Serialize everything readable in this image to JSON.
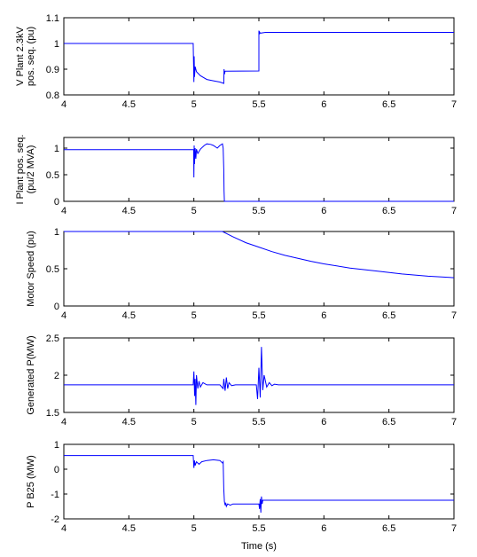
{
  "chart_data": [
    {
      "type": "line",
      "ylabel": [
        "V Plant 2.3kV",
        "pos. seq. (pu)"
      ],
      "xlim": [
        4,
        7
      ],
      "ylim": [
        0.8,
        1.1
      ],
      "xticks": [
        "4",
        "4.5",
        "5",
        "5.5",
        "6",
        "6.5",
        "7"
      ],
      "yticks": [
        "0.8",
        "0.9",
        "1",
        "1.1"
      ],
      "series": [
        {
          "x": [
            4,
            4.995,
            5.0,
            5.002,
            5.005,
            5.01,
            5.02,
            5.05,
            5.1,
            5.15,
            5.2,
            5.23,
            5.232,
            5.235,
            5.24,
            5.5,
            5.5,
            5.502,
            5.505,
            5.51,
            5.55,
            6,
            7
          ],
          "y": [
            1.0,
            1.0,
            0.85,
            0.95,
            0.87,
            0.91,
            0.89,
            0.875,
            0.86,
            0.855,
            0.85,
            0.845,
            0.9,
            0.88,
            0.892,
            0.893,
            1.05,
            1.035,
            1.045,
            1.04,
            1.043,
            1.043,
            1.043
          ]
        }
      ]
    },
    {
      "type": "line",
      "ylabel": [
        "I Plant pos. seq.",
        "(pu/2 MVA)"
      ],
      "xlim": [
        4,
        7
      ],
      "ylim": [
        0,
        1.2
      ],
      "xticks": [
        "4",
        "4.5",
        "5",
        "5.5",
        "6",
        "6.5",
        "7"
      ],
      "yticks": [
        "0",
        "0.5",
        "1"
      ],
      "series": [
        {
          "x": [
            4,
            4.998,
            5.0,
            5.002,
            5.005,
            5.01,
            5.015,
            5.02,
            5.03,
            5.05,
            5.08,
            5.1,
            5.13,
            5.15,
            5.18,
            5.2,
            5.22,
            5.225,
            5.23,
            5.232,
            5.235,
            7
          ],
          "y": [
            0.97,
            0.97,
            0.45,
            1.05,
            0.7,
            1.0,
            0.8,
            0.98,
            0.9,
            0.98,
            1.05,
            1.08,
            1.07,
            1.05,
            1.0,
            1.05,
            1.08,
            1.0,
            0.6,
            0.2,
            0.0,
            0.0
          ]
        }
      ]
    },
    {
      "type": "line",
      "ylabel": [
        "Motor Speed (pu)"
      ],
      "xlim": [
        4,
        7
      ],
      "ylim": [
        0,
        1
      ],
      "xticks": [
        "4",
        "4.5",
        "5",
        "5.5",
        "6",
        "6.5",
        "7"
      ],
      "yticks": [
        "0",
        "0.5",
        "1"
      ],
      "series": [
        {
          "x": [
            4,
            5.22,
            5.3,
            5.4,
            5.5,
            5.6,
            5.7,
            5.8,
            5.9,
            6.0,
            6.2,
            6.4,
            6.6,
            6.8,
            7.0
          ],
          "y": [
            1.0,
            1.0,
            0.93,
            0.85,
            0.79,
            0.73,
            0.68,
            0.64,
            0.6,
            0.565,
            0.51,
            0.47,
            0.43,
            0.4,
            0.38
          ]
        }
      ]
    },
    {
      "type": "line",
      "ylabel": [
        "Generated P(MW)"
      ],
      "xlim": [
        4,
        7
      ],
      "ylim": [
        1.5,
        2.5
      ],
      "xticks": [
        "4",
        "4.5",
        "5",
        "5.5",
        "6",
        "6.5",
        "7"
      ],
      "yticks": [
        "1.5",
        "2",
        "2.5"
      ],
      "series": [
        {
          "x": [
            4,
            4.995,
            5.0,
            5.003,
            5.006,
            5.01,
            5.015,
            5.02,
            5.03,
            5.04,
            5.05,
            5.07,
            5.1,
            5.2,
            5.225,
            5.23,
            5.24,
            5.25,
            5.26,
            5.27,
            5.29,
            5.32,
            5.48,
            5.49,
            5.5,
            5.51,
            5.52,
            5.53,
            5.54,
            5.56,
            5.58,
            5.6,
            5.62,
            5.65,
            7
          ],
          "y": [
            1.87,
            1.87,
            2.05,
            1.9,
            1.72,
            1.95,
            1.6,
            2.0,
            1.82,
            1.92,
            1.84,
            1.9,
            1.87,
            1.87,
            1.82,
            1.95,
            1.79,
            1.97,
            1.82,
            1.9,
            1.86,
            1.87,
            1.87,
            1.68,
            2.1,
            1.7,
            2.38,
            1.8,
            2.0,
            1.84,
            1.9,
            1.86,
            1.88,
            1.87,
            1.87
          ]
        }
      ]
    },
    {
      "type": "line",
      "ylabel": [
        "P B25 (MW)"
      ],
      "xlabel": "Time (s)",
      "xlim": [
        4,
        7
      ],
      "ylim": [
        -2,
        1
      ],
      "xticks": [
        "4",
        "4.5",
        "5",
        "5.5",
        "6",
        "6.5",
        "7"
      ],
      "yticks": [
        "-2",
        "-1",
        "0",
        "1"
      ],
      "series": [
        {
          "x": [
            4,
            4.995,
            5.0,
            5.005,
            5.01,
            5.02,
            5.04,
            5.06,
            5.1,
            5.15,
            5.2,
            5.22,
            5.225,
            5.23,
            5.235,
            5.24,
            5.245,
            5.25,
            5.26,
            5.28,
            5.3,
            5.5,
            5.505,
            5.51,
            5.515,
            5.52,
            5.525,
            5.53,
            5.55,
            5.6,
            7
          ],
          "y": [
            0.55,
            0.55,
            0.05,
            0.35,
            0.15,
            0.3,
            0.2,
            0.3,
            0.35,
            0.38,
            0.35,
            0.25,
            0.3,
            -0.8,
            -1.3,
            -1.45,
            -1.35,
            -1.5,
            -1.4,
            -1.45,
            -1.4,
            -1.4,
            -1.6,
            -1.2,
            -1.75,
            -1.1,
            -1.4,
            -1.25,
            -1.25,
            -1.25,
            -1.25
          ]
        }
      ]
    }
  ]
}
